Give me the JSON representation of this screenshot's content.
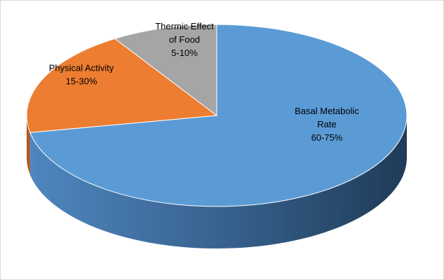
{
  "chart_data": {
    "type": "pie",
    "title": "",
    "style": "3d",
    "slices": [
      {
        "name": "Basal Metabolic Rate",
        "label_lines": [
          "Basal Metabolic",
          "Rate",
          "60-75%"
        ],
        "range": "60-75%",
        "value": 72,
        "color": "#5b9bd5",
        "side_color": "#41719c"
      },
      {
        "name": "Physical Activity",
        "label_lines": [
          "Physical Activity",
          "15-30%"
        ],
        "range": "15-30%",
        "value": 19,
        "color": "#ed7d31",
        "side_color": "#ae5a21"
      },
      {
        "name": "Thermic Effect of Food",
        "label_lines": [
          "Thermic Effect",
          "of Food",
          "5-10%"
        ],
        "range": "5-10%",
        "value": 9,
        "color": "#a5a5a5",
        "side_color": "#7b7b7b"
      }
    ]
  }
}
